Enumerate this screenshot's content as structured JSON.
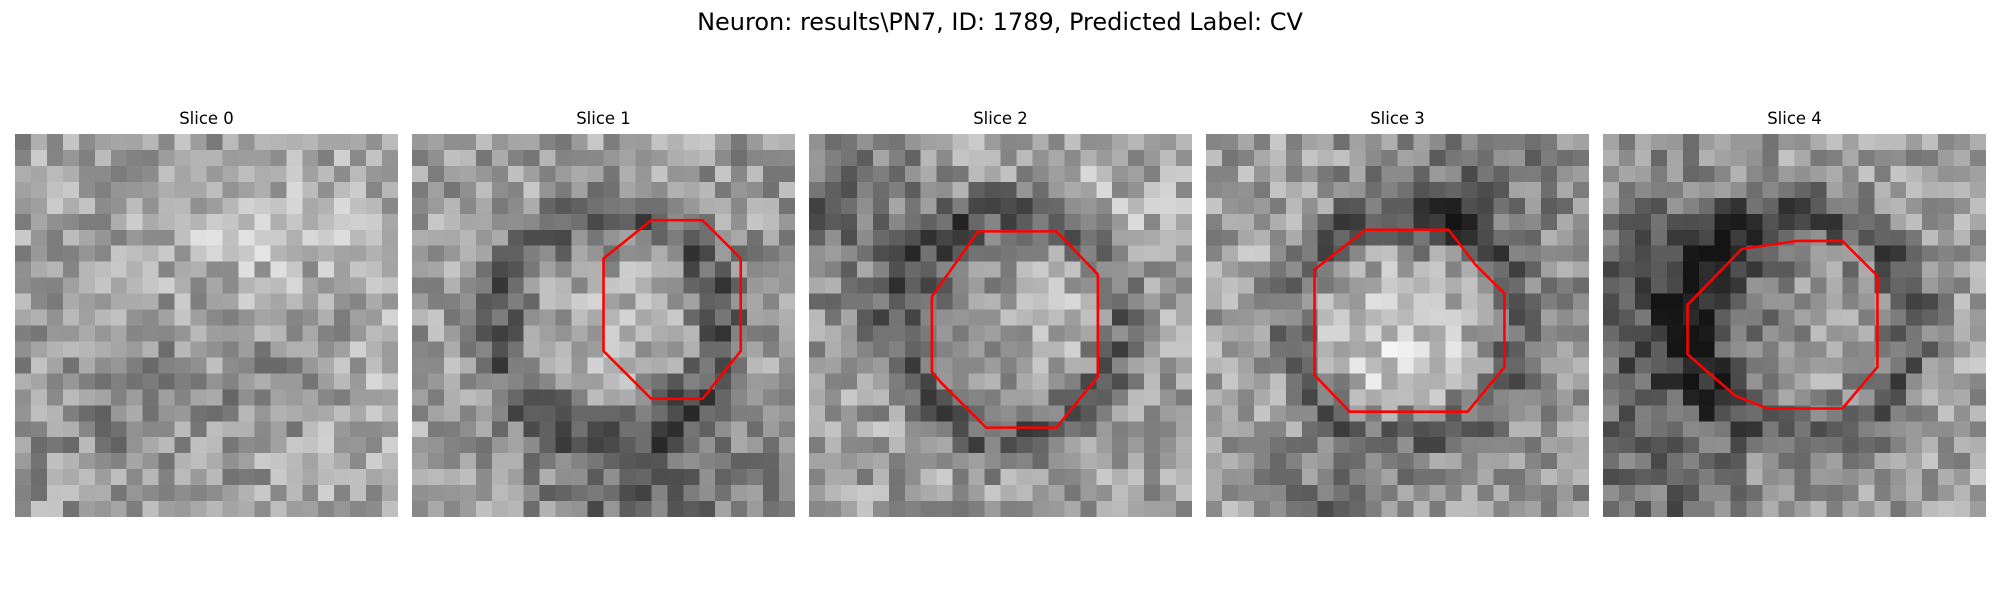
{
  "figure": {
    "title": "Neuron: results\\PN7, ID: 1789, Predicted Label: CV"
  },
  "style": {
    "contour_color": "#ff0000"
  },
  "panels": [
    {
      "title": "Slice 0",
      "pattern": "noise-blotches",
      "has_contour": false,
      "contour": []
    },
    {
      "title": "Slice 1",
      "pattern": "dark-ring",
      "has_contour": true,
      "contour": [
        [
          15,
          5.4
        ],
        [
          18.2,
          5.4
        ],
        [
          20.6,
          7.8
        ],
        [
          20.6,
          13.6
        ],
        [
          18.2,
          16.6
        ],
        [
          15,
          16.6
        ],
        [
          12,
          13.6
        ],
        [
          12,
          7.8
        ]
      ]
    },
    {
      "title": "Slice 2",
      "pattern": "dark-ring",
      "has_contour": true,
      "contour": [
        [
          10.6,
          6.1
        ],
        [
          15.5,
          6.1
        ],
        [
          18.1,
          8.8
        ],
        [
          18.1,
          15.2
        ],
        [
          15.5,
          18.4
        ],
        [
          11.1,
          18.4
        ],
        [
          8.3,
          15.6
        ],
        [
          7.7,
          14.9
        ],
        [
          7.7,
          10.2
        ],
        [
          8.9,
          8.5
        ]
      ]
    },
    {
      "title": "Slice 3",
      "pattern": "dark-ring",
      "has_contour": true,
      "contour": [
        [
          10,
          6
        ],
        [
          15.2,
          6
        ],
        [
          16.9,
          8.2
        ],
        [
          18.7,
          10
        ],
        [
          18.7,
          14.6
        ],
        [
          16.4,
          17.4
        ],
        [
          9,
          17.4
        ],
        [
          6.8,
          15.1
        ],
        [
          6.8,
          8.5
        ]
      ]
    },
    {
      "title": "Slice 4",
      "pattern": "dark-ring",
      "has_contour": true,
      "contour": [
        [
          12.2,
          6.7
        ],
        [
          15,
          6.7
        ],
        [
          17.2,
          8.9
        ],
        [
          17.2,
          14.6
        ],
        [
          15,
          17.2
        ],
        [
          10.3,
          17.2
        ],
        [
          8.3,
          16.4
        ],
        [
          6.2,
          14.6
        ],
        [
          5.3,
          13.8
        ],
        [
          5.3,
          10.7
        ],
        [
          8.7,
          7.2
        ]
      ]
    }
  ]
}
